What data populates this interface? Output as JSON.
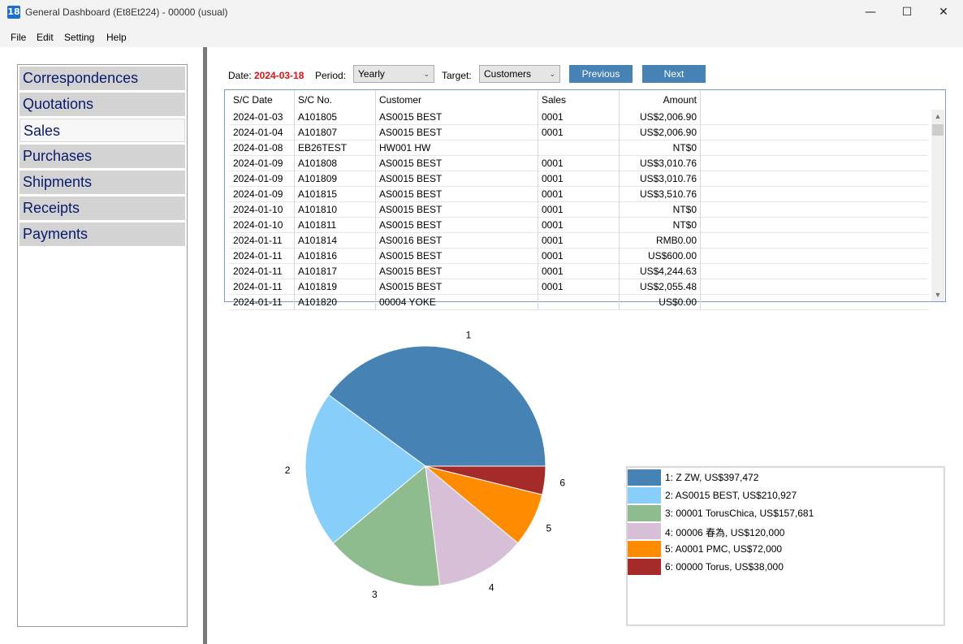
{
  "window": {
    "title": "General Dashboard (Et8Et224) - 00000 (usual)",
    "app_icon": "18",
    "minimize_glyph": "—",
    "maximize_glyph": "☐",
    "close_glyph": "✕"
  },
  "menu": [
    "File",
    "Edit",
    "Setting",
    "Help"
  ],
  "sidebar": {
    "items": [
      {
        "label": "Correspondences",
        "active": false
      },
      {
        "label": "Quotations",
        "active": false
      },
      {
        "label": "Sales",
        "active": true
      },
      {
        "label": "Purchases",
        "active": false
      },
      {
        "label": "Shipments",
        "active": false
      },
      {
        "label": "Receipts",
        "active": false
      },
      {
        "label": "Payments",
        "active": false
      }
    ]
  },
  "toolbar": {
    "date_label": "Date:",
    "date_value": "2024-03-18",
    "period_label": "Period:",
    "period_value": "Yearly",
    "target_label": "Target:",
    "target_value": "Customers",
    "previous_label": "Previous",
    "next_label": "Next",
    "dropdown_arrow": "⌄"
  },
  "table": {
    "columns": [
      "S/C Date",
      "S/C No.",
      "Customer",
      "Sales",
      "Amount"
    ],
    "rows": [
      [
        "2024-01-03",
        "A101805",
        "AS0015 BEST",
        "0001",
        "US$2,006.90"
      ],
      [
        "2024-01-04",
        "A101807",
        "AS0015 BEST",
        "0001",
        "US$2,006.90"
      ],
      [
        "2024-01-08",
        "EB26TEST",
        "HW001 HW",
        "",
        "NT$0"
      ],
      [
        "2024-01-09",
        "A101808",
        "AS0015 BEST",
        "0001",
        "US$3,010.76"
      ],
      [
        "2024-01-09",
        "A101809",
        "AS0015 BEST",
        "0001",
        "US$3,010.76"
      ],
      [
        "2024-01-09",
        "A101815",
        "AS0015 BEST",
        "0001",
        "US$3,510.76"
      ],
      [
        "2024-01-10",
        "A101810",
        "AS0015 BEST",
        "0001",
        "NT$0"
      ],
      [
        "2024-01-10",
        "A101811",
        "AS0015 BEST",
        "0001",
        "NT$0"
      ],
      [
        "2024-01-11",
        "A101814",
        "AS0016 BEST",
        "0001",
        "RMB0.00"
      ],
      [
        "2024-01-11",
        "A101816",
        "AS0015 BEST",
        "0001",
        "US$600.00"
      ],
      [
        "2024-01-11",
        "A101817",
        "AS0015 BEST",
        "0001",
        "US$4,244.63"
      ],
      [
        "2024-01-11",
        "A101819",
        "AS0015 BEST",
        "0001",
        "US$2,055.48"
      ],
      [
        "2024-01-11",
        "A101820",
        "00004 YOKE",
        "",
        "US$0.00"
      ]
    ],
    "scroll_up_glyph": "▲",
    "scroll_down_glyph": "▼"
  },
  "chart_data": {
    "type": "pie",
    "title": "",
    "slice_labels": [
      "1",
      "2",
      "3",
      "4",
      "5",
      "6"
    ],
    "legend_placement": "bottom-right",
    "series": [
      {
        "label": "1: Z ZW, US$397,472",
        "value": 397472,
        "color": "#4682b4"
      },
      {
        "label": "2: AS0015 BEST, US$210,927",
        "value": 210927,
        "color": "#87cefa"
      },
      {
        "label": "3: 00001 TorusChica, US$157,681",
        "value": 157681,
        "color": "#8fbc8f"
      },
      {
        "label": "4: 00006 春為, US$120,000",
        "value": 120000,
        "color": "#d8bfd8"
      },
      {
        "label": "5: A0001 PMC, US$72,000",
        "value": 72000,
        "color": "#ff8c00"
      },
      {
        "label": "6: 00000 Torus, US$38,000",
        "value": 38000,
        "color": "#a52a2a"
      }
    ]
  }
}
